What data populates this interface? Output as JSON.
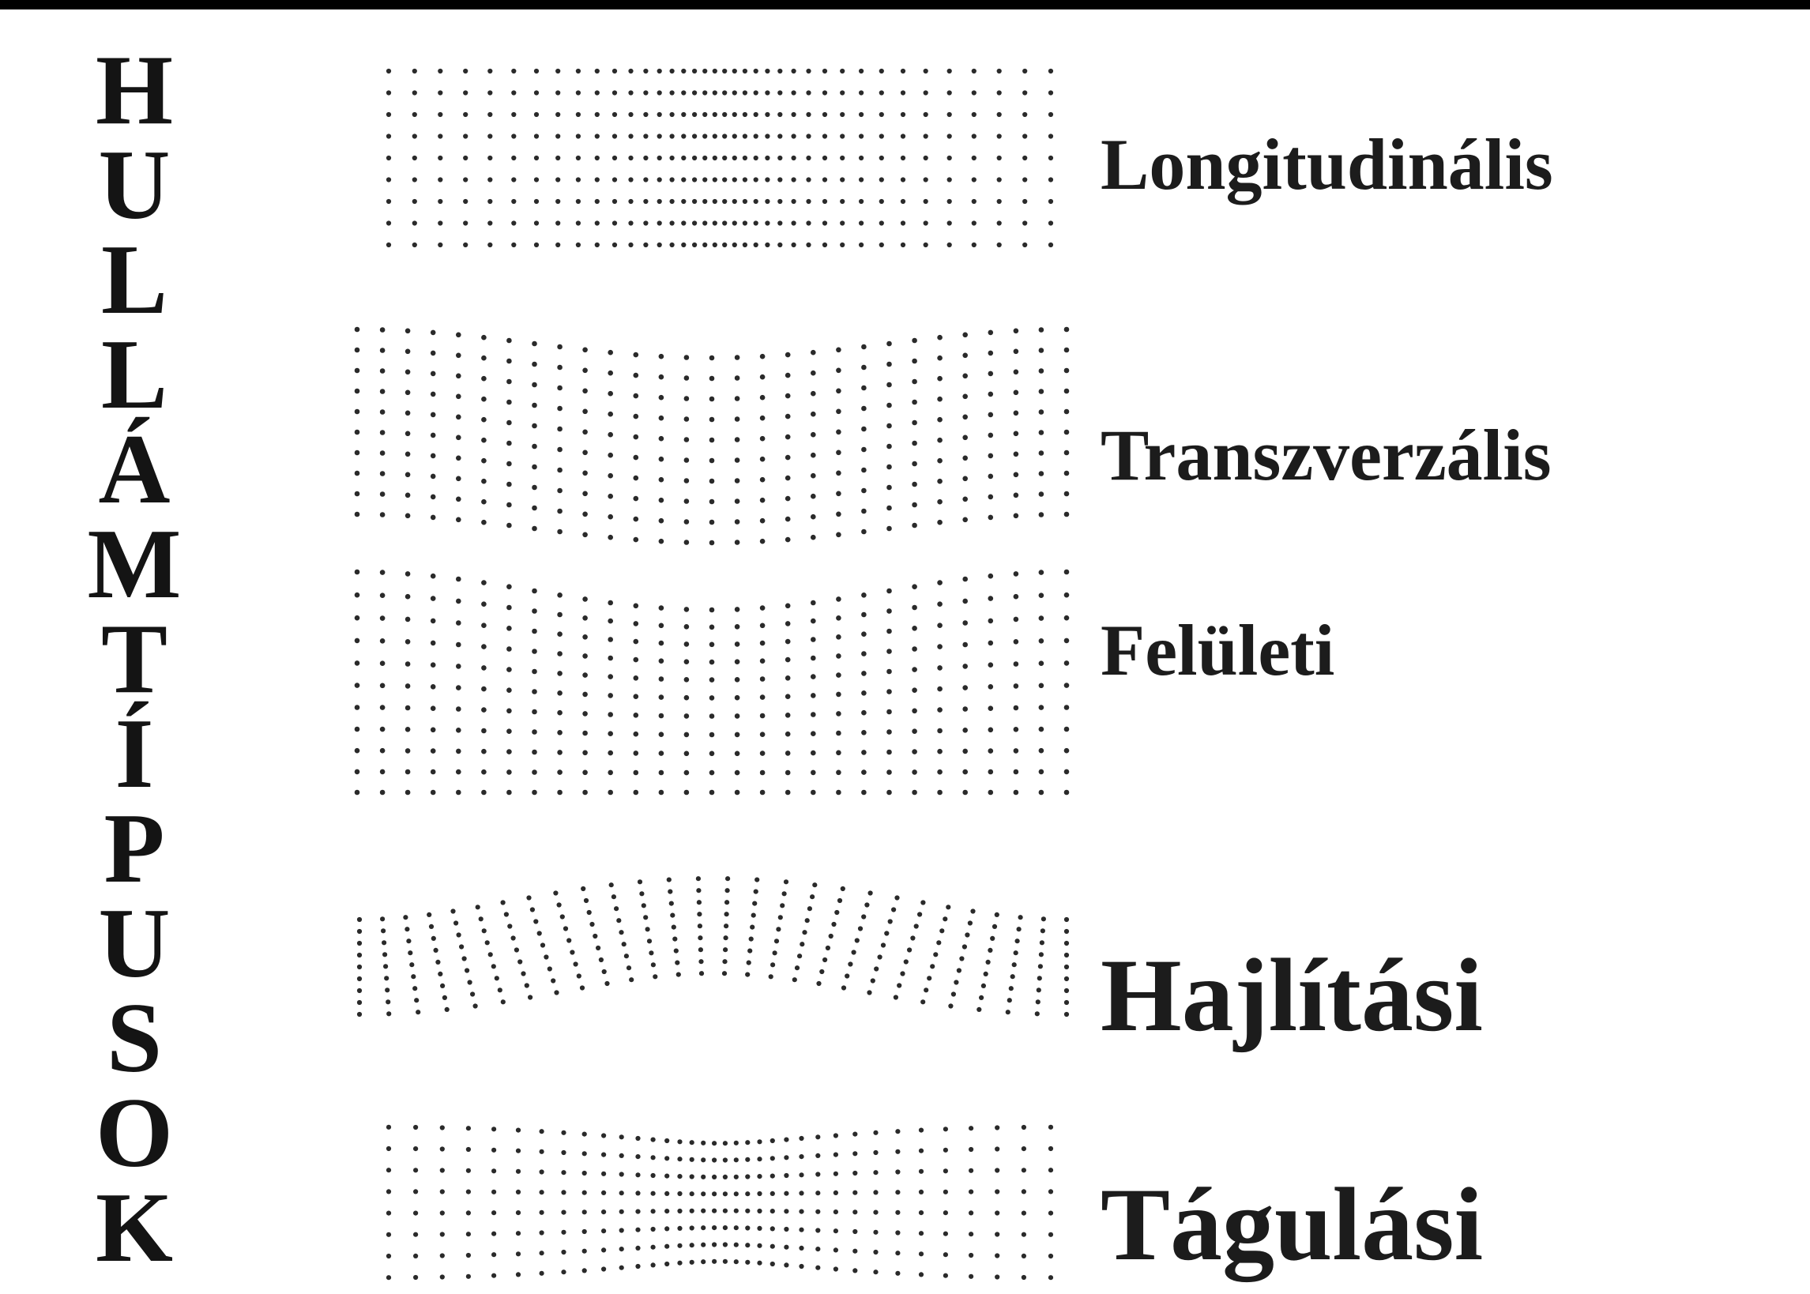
{
  "title_letters": [
    "H",
    "U",
    "L",
    "L",
    "Á",
    "M",
    "T",
    "Í",
    "P",
    "U",
    "S",
    "O",
    "K"
  ],
  "wave_types": [
    {
      "label": "Longitudinális",
      "pattern": "longitudinal-dot-grid"
    },
    {
      "label": "Transzverzális",
      "pattern": "transverse-dot-grid"
    },
    {
      "label": "Felületi",
      "pattern": "surface-dot-grid"
    },
    {
      "label": "Hajlítási",
      "pattern": "bending-dot-grid"
    },
    {
      "label": "Tágulási",
      "pattern": "expansion-dot-grid"
    }
  ],
  "colors": {
    "dots": "#2a2a2a",
    "text": "#1c1c1c",
    "border": "#000000"
  }
}
